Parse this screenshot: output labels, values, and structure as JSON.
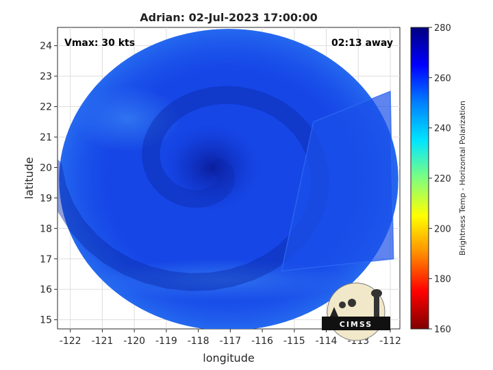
{
  "chart_data": {
    "type": "heatmap",
    "title": "Adrian: 02-Jul-2023 17:00:00",
    "xlabel": "longitude",
    "ylabel": "latitude",
    "xlim": [
      -122.4,
      -111.7
    ],
    "ylim": [
      14.7,
      24.6
    ],
    "xticks": [
      -122,
      -121,
      -120,
      -119,
      -118,
      -117,
      -116,
      -115,
      -114,
      -113,
      -112
    ],
    "yticks": [
      15,
      16,
      17,
      18,
      19,
      20,
      21,
      22,
      23,
      24
    ],
    "grid": true,
    "annotations": {
      "left": "Vmax: 30 kts",
      "right": "02:13 away"
    },
    "storm_center": {
      "lon": -117.6,
      "lat": 20.0
    },
    "swath": {
      "center_lon": -117.05,
      "center_lat": 19.6,
      "radius_lon": 5.3,
      "radius_lat": 4.95
    },
    "colorbar": {
      "label": "Brightness Temp - Horizontal Polarization",
      "min": 160,
      "max": 280,
      "ticks": [
        160,
        180,
        200,
        220,
        240,
        260,
        280
      ],
      "colors": [
        "#7f0000",
        "#ff0000",
        "#ff8c00",
        "#ffff00",
        "#7fff7f",
        "#00e5ff",
        "#0080ff",
        "#0000ff",
        "#00007f"
      ]
    },
    "logo": {
      "text": "CIMSS"
    }
  }
}
